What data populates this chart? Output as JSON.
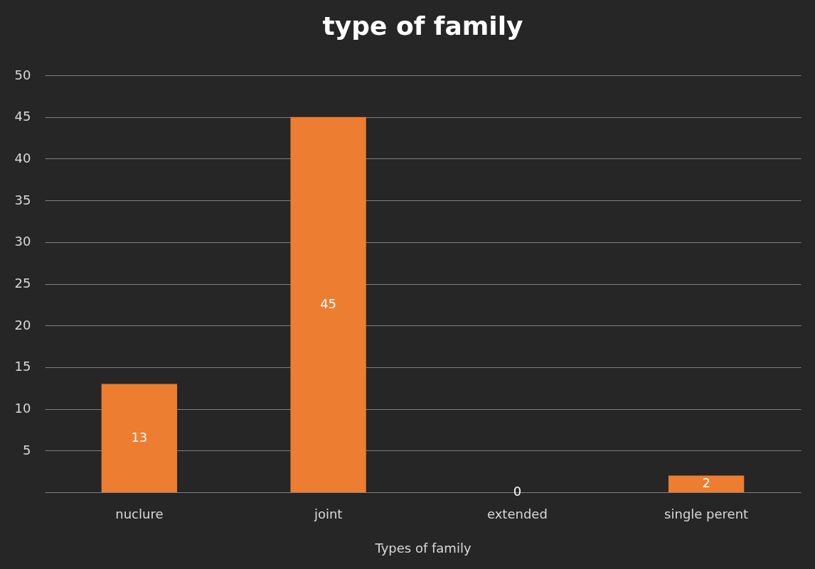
{
  "chart_data": {
    "type": "bar",
    "title": "type  of  family",
    "xlabel": "Types of family",
    "categories": [
      "nuclure",
      "joint",
      "extended",
      "single perent"
    ],
    "values": [
      13,
      45,
      0,
      2
    ],
    "color": "#ed7d31",
    "ylim": [
      0,
      50
    ],
    "yticks": [
      {
        "value": 0,
        "label": null
      },
      5,
      10,
      15,
      20,
      25,
      30,
      35,
      40,
      45,
      50
    ],
    "grid": "y",
    "data_labels": true
  }
}
